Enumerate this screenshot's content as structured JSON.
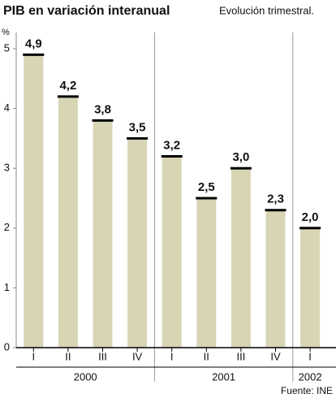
{
  "chart_data": {
    "type": "bar",
    "title": "PIB en variación interanual",
    "subtitle": "Evolución trimestral.",
    "y_label": "%",
    "source": "Fuente: INE",
    "color": "#d8d5b4",
    "cap_color": "#000000",
    "ylim": [
      0,
      5
    ],
    "yticks": [
      0,
      1,
      2,
      3,
      4,
      5
    ],
    "groups": [
      {
        "name": "2000",
        "categories": [
          "I",
          "II",
          "III",
          "IV"
        ],
        "values": [
          4.9,
          4.2,
          3.8,
          3.5
        ],
        "value_labels": [
          "4,9",
          "4,2",
          "3,8",
          "3,5"
        ]
      },
      {
        "name": "2001",
        "categories": [
          "I",
          "II",
          "III",
          "IV"
        ],
        "values": [
          3.2,
          2.5,
          3.0,
          2.3
        ],
        "value_labels": [
          "3,2",
          "2,5",
          "3,0",
          "2,3"
        ]
      },
      {
        "name": "2002",
        "categories": [
          "I"
        ],
        "values": [
          2.0
        ],
        "value_labels": [
          "2,0"
        ]
      }
    ]
  }
}
